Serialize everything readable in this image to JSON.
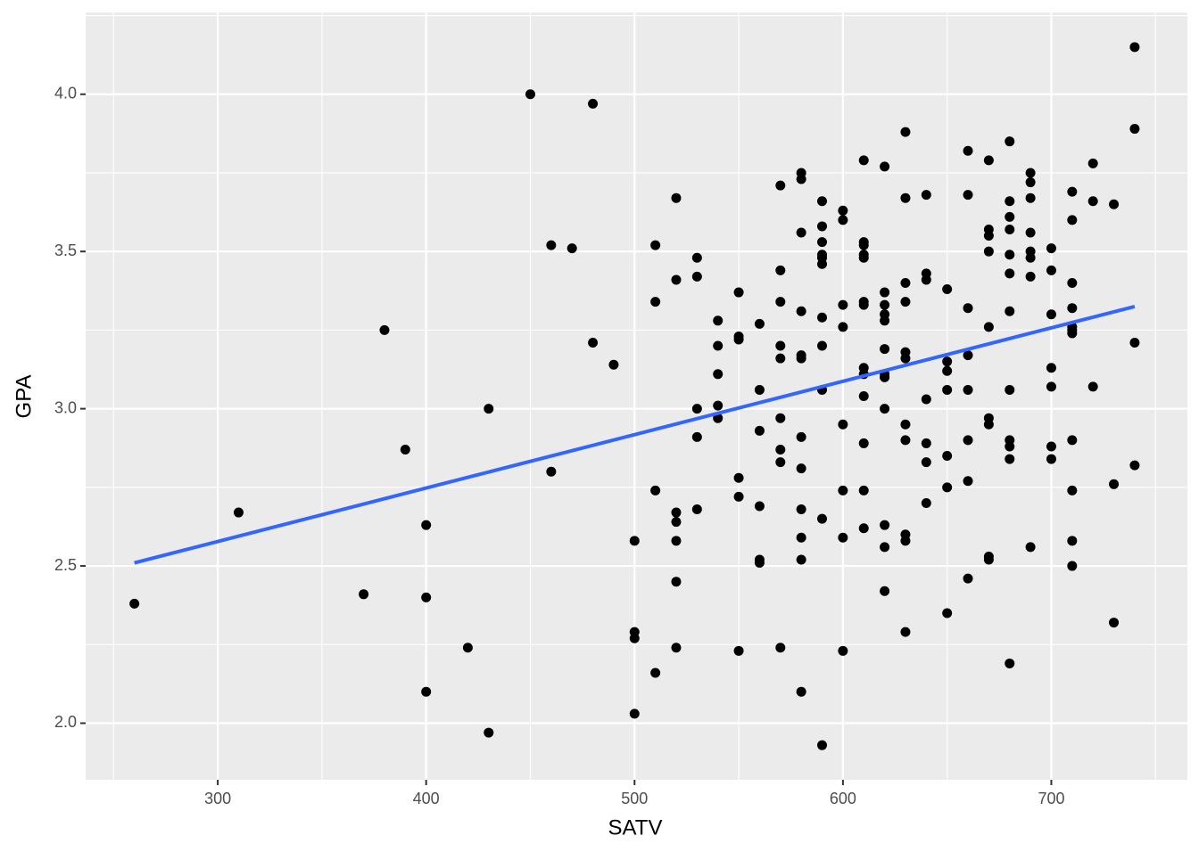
{
  "chart_data": {
    "type": "scatter",
    "x_label": "SATV",
    "y_label": "GPA",
    "xlim": [
      236.6,
      765.3
    ],
    "ylim": [
      1.82,
      4.26
    ],
    "xticks": [
      300,
      400,
      500,
      600,
      700
    ],
    "x_minor_ticks": [
      250,
      350,
      450,
      550,
      650,
      750
    ],
    "yticks": [
      {
        "value": 2,
        "label": "2.0"
      },
      {
        "value": 2.5,
        "label": "2.5"
      },
      {
        "value": 3,
        "label": "3.0"
      },
      {
        "value": 3.5,
        "label": "3.5"
      },
      {
        "value": 4,
        "label": "4.0"
      }
    ],
    "y_minor_ticks": [
      2.25,
      2.75,
      3.25,
      3.75,
      4.25
    ],
    "grid": true,
    "points": {
      "color": "#000000",
      "x": [
        260,
        310,
        370,
        380,
        390,
        400,
        400,
        400,
        420,
        430,
        430,
        450,
        460,
        460,
        470,
        480,
        480,
        490,
        500,
        500,
        500,
        500,
        510,
        510,
        510,
        510,
        520,
        520,
        520,
        520,
        520,
        520,
        520,
        530,
        530,
        530,
        530,
        530,
        540,
        540,
        540,
        540,
        540,
        550,
        550,
        550,
        550,
        550,
        550,
        560,
        560,
        560,
        560,
        560,
        560,
        570,
        570,
        570,
        570,
        570,
        570,
        570,
        570,
        570,
        580,
        580,
        580,
        580,
        580,
        580,
        580,
        580,
        580,
        580,
        580,
        580,
        590,
        590,
        590,
        590,
        590,
        590,
        590,
        590,
        590,
        590,
        590,
        600,
        600,
        600,
        600,
        600,
        600,
        600,
        600,
        610,
        610,
        610,
        610,
        610,
        610,
        610,
        610,
        610,
        610,
        610,
        610,
        610,
        620,
        620,
        620,
        620,
        620,
        620,
        620,
        620,
        620,
        620,
        620,
        620,
        630,
        630,
        630,
        630,
        630,
        630,
        630,
        630,
        630,
        630,
        630,
        640,
        640,
        640,
        640,
        640,
        640,
        640,
        650,
        650,
        650,
        650,
        650,
        650,
        650,
        660,
        660,
        660,
        660,
        660,
        660,
        660,
        660,
        670,
        670,
        670,
        670,
        670,
        670,
        670,
        670,
        670,
        680,
        680,
        680,
        680,
        680,
        680,
        680,
        680,
        680,
        680,
        680,
        680,
        690,
        690,
        690,
        690,
        690,
        690,
        690,
        690,
        700,
        700,
        700,
        700,
        700,
        700,
        700,
        710,
        710,
        710,
        710,
        710,
        710,
        710,
        710,
        710,
        710,
        710,
        720,
        720,
        720,
        730,
        730,
        730,
        740,
        740,
        740,
        740
      ],
      "values": [
        2.38,
        2.67,
        2.41,
        3.25,
        2.87,
        2.63,
        2.4,
        2.1,
        2.24,
        3.0,
        1.97,
        4.0,
        3.52,
        2.8,
        3.51,
        3.97,
        3.21,
        3.14,
        2.58,
        2.29,
        2.27,
        2.03,
        3.52,
        3.34,
        2.74,
        2.16,
        3.67,
        3.41,
        2.67,
        2.64,
        2.58,
        2.45,
        2.24,
        3.48,
        3.42,
        3.0,
        2.91,
        2.68,
        3.28,
        3.2,
        3.11,
        3.01,
        2.97,
        3.37,
        3.23,
        3.22,
        2.78,
        2.72,
        2.23,
        3.27,
        3.06,
        2.93,
        2.69,
        2.52,
        2.51,
        3.71,
        3.44,
        3.34,
        3.2,
        3.16,
        2.97,
        2.87,
        2.83,
        2.24,
        3.75,
        3.73,
        3.56,
        3.31,
        3.17,
        3.16,
        2.91,
        2.81,
        2.68,
        2.59,
        2.52,
        2.1,
        3.66,
        3.58,
        3.53,
        3.49,
        3.48,
        3.46,
        3.29,
        3.2,
        3.06,
        2.65,
        1.93,
        3.63,
        3.6,
        3.33,
        3.26,
        2.95,
        2.74,
        2.59,
        2.23,
        3.79,
        3.53,
        3.52,
        3.49,
        3.48,
        3.34,
        3.33,
        3.13,
        3.11,
        3.04,
        2.89,
        2.74,
        2.62,
        3.77,
        3.37,
        3.33,
        3.3,
        3.28,
        3.19,
        3.11,
        3.1,
        3.0,
        2.63,
        2.56,
        2.42,
        3.88,
        3.67,
        3.4,
        3.34,
        3.18,
        3.16,
        2.95,
        2.9,
        2.6,
        2.58,
        2.29,
        3.68,
        3.43,
        3.41,
        3.03,
        2.89,
        2.83,
        2.7,
        3.38,
        3.15,
        3.12,
        3.06,
        2.85,
        2.75,
        2.35,
        3.82,
        3.68,
        3.32,
        3.17,
        3.06,
        2.9,
        2.77,
        2.46,
        3.79,
        3.57,
        3.55,
        3.5,
        3.26,
        2.97,
        2.95,
        2.53,
        2.52,
        3.85,
        3.66,
        3.61,
        3.57,
        3.49,
        3.43,
        3.31,
        3.06,
        2.9,
        2.88,
        2.84,
        2.19,
        3.75,
        3.72,
        3.67,
        3.56,
        3.5,
        3.48,
        3.42,
        2.56,
        3.51,
        3.44,
        3.3,
        3.13,
        3.07,
        2.88,
        2.84,
        3.69,
        3.6,
        3.4,
        3.32,
        3.26,
        3.25,
        3.24,
        2.9,
        2.74,
        2.58,
        2.5,
        3.78,
        3.66,
        3.07,
        3.65,
        2.76,
        2.32,
        4.15,
        3.89,
        3.21,
        2.82
      ]
    },
    "fit_line": {
      "color": "#3366ff",
      "x": [
        260,
        740
      ],
      "values": [
        2.51,
        3.325
      ]
    }
  }
}
